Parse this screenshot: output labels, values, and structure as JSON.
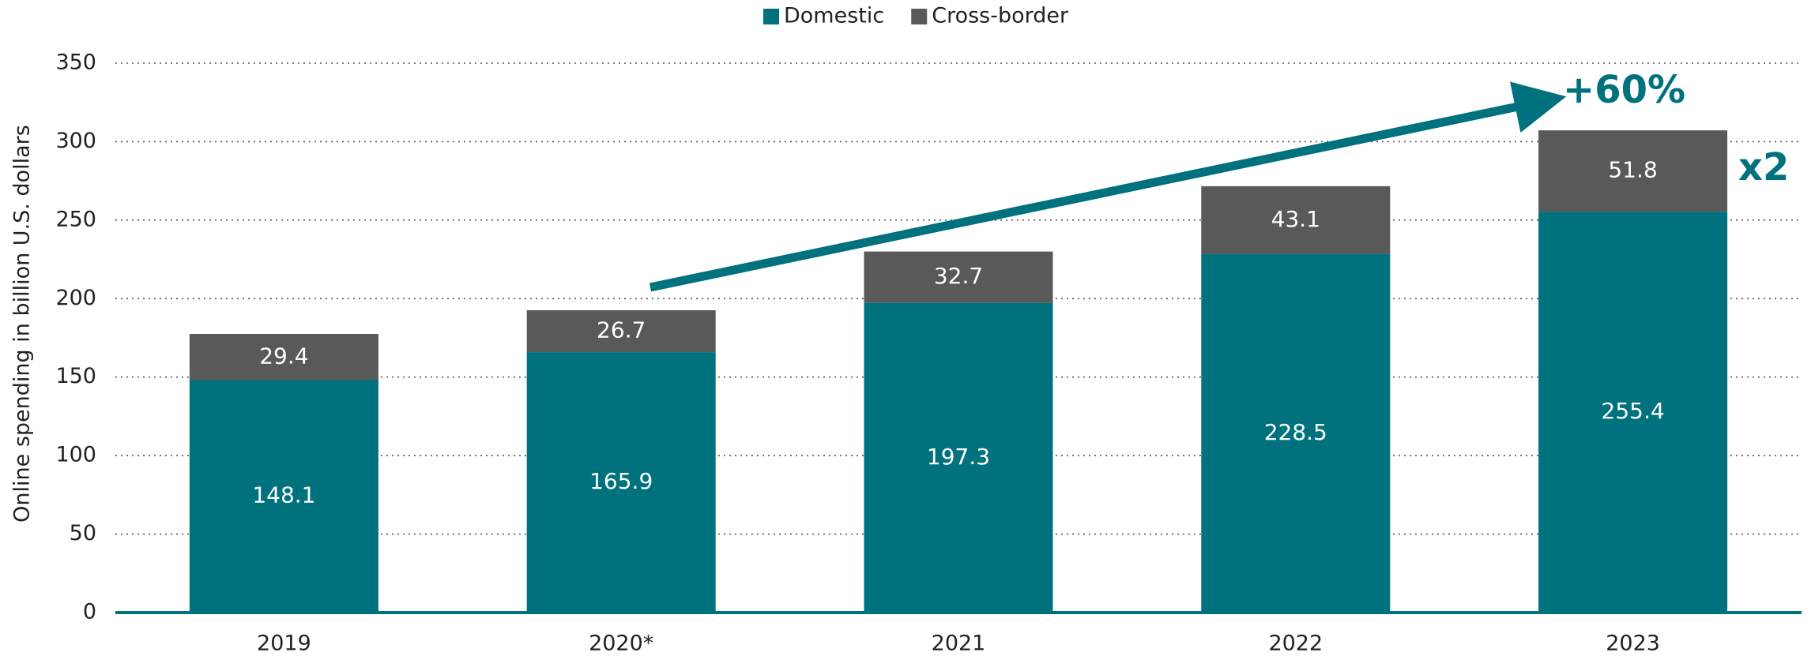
{
  "chart_data": {
    "type": "stacked_bar",
    "y_label": "Online spending in billion U.S. dollars",
    "categories": [
      "2019",
      "2020*",
      "2021",
      "2022",
      "2023"
    ],
    "series": [
      {
        "name": "Domestic",
        "color": "#00727d",
        "values": [
          148.1,
          165.9,
          197.3,
          228.5,
          255.4
        ]
      },
      {
        "name": "Cross-border",
        "color": "#595959",
        "values": [
          29.4,
          26.7,
          32.7,
          43.1,
          51.8
        ]
      }
    ],
    "ylim": [
      0,
      350
    ],
    "yticks": [
      0,
      50,
      100,
      150,
      200,
      250,
      300,
      350
    ],
    "grid": true,
    "legend": "top",
    "annotations": [
      "+60%",
      "x2"
    ]
  }
}
